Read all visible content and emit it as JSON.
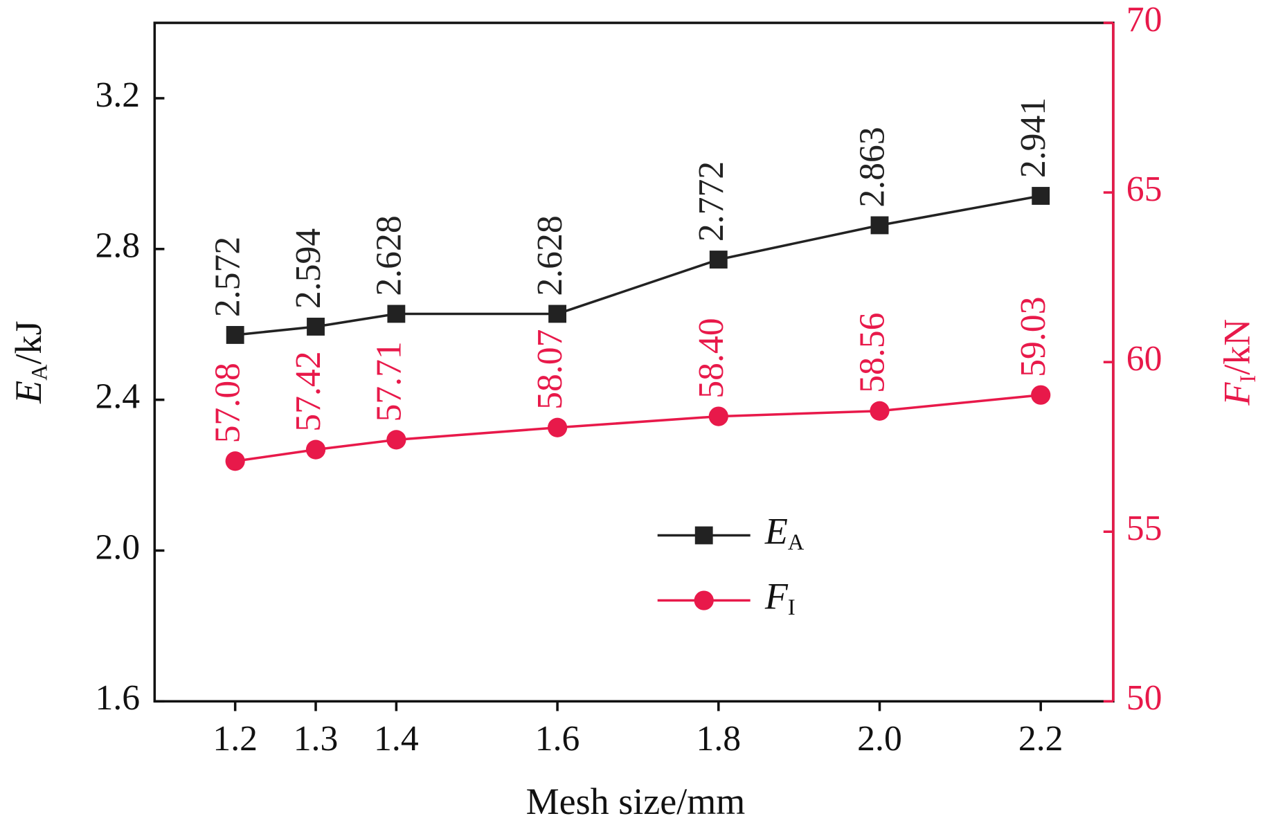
{
  "chart_data": {
    "type": "line",
    "x_label": "Mesh size/mm",
    "y_label": "EA/kJ",
    "y2_label": "FI/kN",
    "x": [
      1.2,
      1.3,
      1.4,
      1.6,
      1.8,
      2.0,
      2.2
    ],
    "xlim": [
      1.1,
      2.29
    ],
    "xticks": [
      1.2,
      1.3,
      1.4,
      1.6,
      1.8,
      {
        "value": 2,
        "label": "2.0"
      },
      2.2
    ],
    "ylim": [
      1.6,
      3.4
    ],
    "yticks": [
      1.6,
      {
        "value": 2,
        "label": "2.0"
      },
      2.4,
      2.8,
      3.2
    ],
    "y2lim": [
      50,
      70
    ],
    "y2ticks": [
      50,
      55,
      60,
      65,
      70
    ],
    "y2_color": "#e8194a",
    "grid": false,
    "legend": "bottom",
    "series": [
      {
        "name": "EA",
        "color": "#222222",
        "marker": "square",
        "values": [
          2.572,
          2.594,
          2.628,
          2.628,
          2.772,
          2.863,
          2.941
        ]
      },
      {
        "name": "FI",
        "color": "#e8194a",
        "marker": "circle",
        "axis": "y2",
        "values": [
          57.08,
          57.42,
          57.71,
          58.07,
          58.4,
          58.56,
          59.03
        ],
        "value_labels": [
          "57.08",
          "57.42",
          "57.71",
          "58.07",
          "58.40",
          "58.56",
          "59.03"
        ]
      }
    ]
  }
}
